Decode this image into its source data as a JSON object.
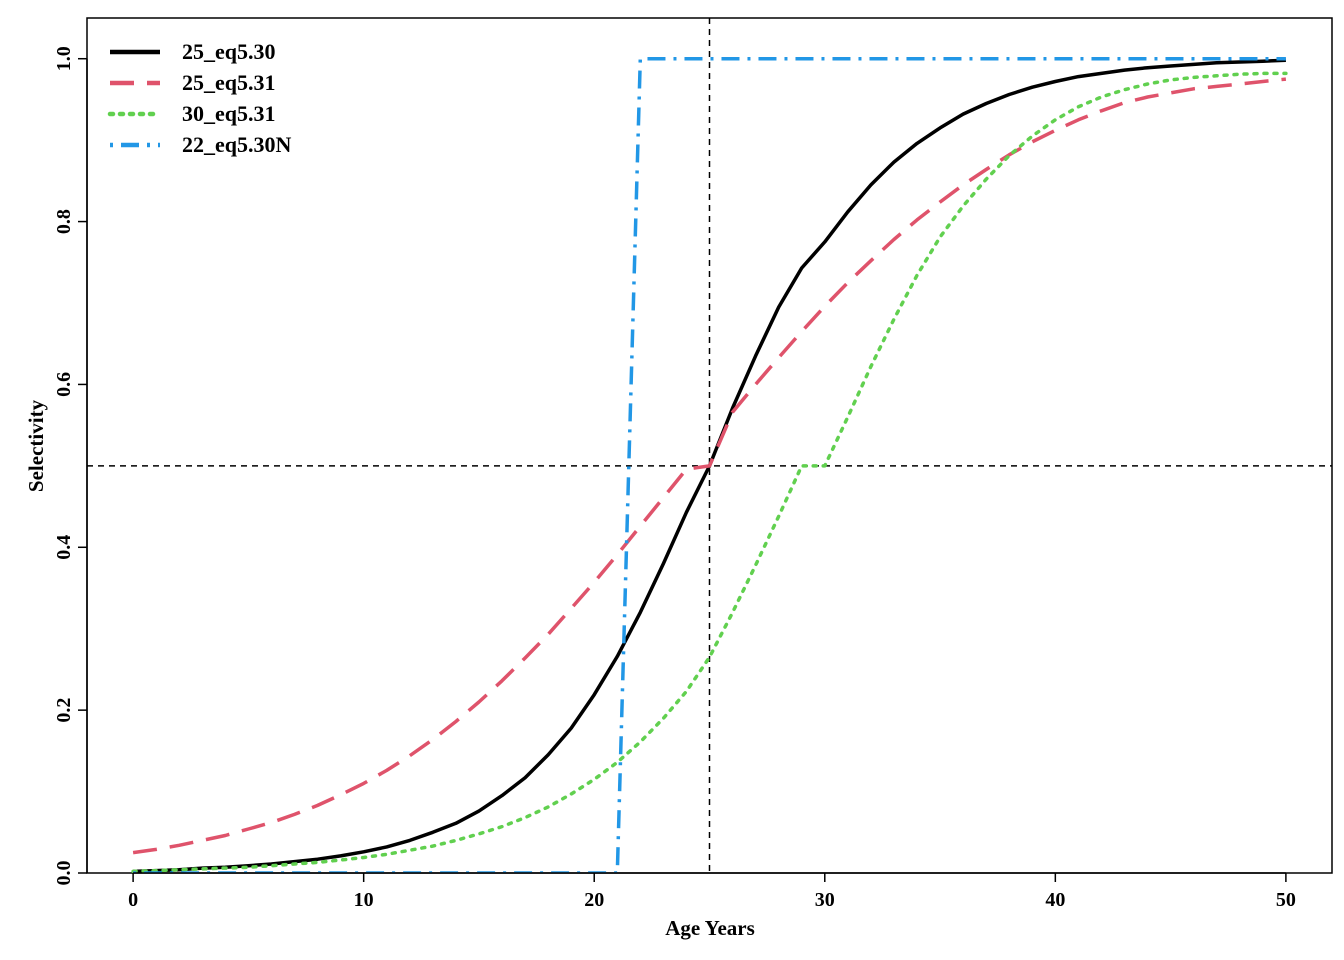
{
  "chart_data": {
    "type": "line",
    "xlabel": "Age Years",
    "ylabel": "Selectivity",
    "xlim": [
      -2,
      52
    ],
    "ylim": [
      0,
      1.05
    ],
    "x_ticks": [
      0,
      10,
      20,
      30,
      40,
      50
    ],
    "y_ticks": [
      0.0,
      0.2,
      0.4,
      0.6,
      0.8,
      1.0
    ],
    "x_tick_labels": [
      "0",
      "10",
      "20",
      "30",
      "40",
      "50"
    ],
    "y_tick_labels": [
      "0.0",
      "0.2",
      "0.4",
      "0.6",
      "0.8",
      "1.0"
    ],
    "grid": false,
    "legend_position": "top-left",
    "reference_lines": [
      {
        "orientation": "vertical",
        "value": 25
      },
      {
        "orientation": "horizontal",
        "value": 0.5
      }
    ],
    "x": [
      0,
      1,
      2,
      3,
      4,
      5,
      6,
      7,
      8,
      9,
      10,
      11,
      12,
      13,
      14,
      15,
      16,
      17,
      18,
      19,
      20,
      21,
      22,
      23,
      24,
      25,
      26,
      27,
      28,
      29,
      30,
      31,
      32,
      33,
      34,
      35,
      36,
      37,
      38,
      39,
      40,
      41,
      42,
      43,
      44,
      45,
      46,
      47,
      48,
      49,
      50
    ],
    "series": [
      {
        "name": "25_eq5.30",
        "color": "#000000",
        "dash": "solid",
        "values": [
          0.002,
          0.003,
          0.004,
          0.006,
          0.007,
          0.009,
          0.011,
          0.014,
          0.017,
          0.021,
          0.026,
          0.032,
          0.04,
          0.05,
          0.061,
          0.076,
          0.095,
          0.117,
          0.145,
          0.178,
          0.219,
          0.266,
          0.32,
          0.38,
          0.443,
          0.5,
          0.571,
          0.635,
          0.695,
          0.743,
          0.775,
          0.812,
          0.845,
          0.873,
          0.896,
          0.915,
          0.932,
          0.945,
          0.956,
          0.965,
          0.972,
          0.978,
          0.982,
          0.986,
          0.989,
          0.991,
          0.993,
          0.995,
          0.996,
          0.997,
          0.998
        ]
      },
      {
        "name": "25_eq5.31",
        "color": "#DF536B",
        "dash": "dashed",
        "values": [
          0.025,
          0.029,
          0.034,
          0.04,
          0.046,
          0.054,
          0.062,
          0.072,
          0.083,
          0.096,
          0.11,
          0.126,
          0.144,
          0.164,
          0.186,
          0.21,
          0.236,
          0.264,
          0.293,
          0.325,
          0.357,
          0.391,
          0.426,
          0.461,
          0.496,
          0.5,
          0.566,
          0.6,
          0.633,
          0.665,
          0.696,
          0.725,
          0.752,
          0.778,
          0.802,
          0.824,
          0.845,
          0.864,
          0.882,
          0.898,
          0.912,
          0.925,
          0.936,
          0.946,
          0.953,
          0.958,
          0.963,
          0.966,
          0.969,
          0.972,
          0.975
        ]
      },
      {
        "name": "30_eq5.31",
        "color": "#61D04F",
        "dash": "dotted",
        "values": [
          0.002,
          0.003,
          0.004,
          0.005,
          0.006,
          0.007,
          0.009,
          0.011,
          0.013,
          0.016,
          0.019,
          0.023,
          0.028,
          0.033,
          0.04,
          0.048,
          0.057,
          0.068,
          0.081,
          0.097,
          0.115,
          0.136,
          0.161,
          0.19,
          0.223,
          0.265,
          0.32,
          0.378,
          0.438,
          0.5,
          0.5,
          0.56,
          0.622,
          0.68,
          0.734,
          0.781,
          0.819,
          0.852,
          0.881,
          0.905,
          0.925,
          0.941,
          0.953,
          0.962,
          0.969,
          0.974,
          0.977,
          0.979,
          0.981,
          0.982,
          0.982
        ]
      },
      {
        "name": "22_eq5.30N",
        "color": "#2297E6",
        "dash": "dotdash",
        "values": [
          0,
          0,
          0,
          0,
          0,
          0,
          0,
          0,
          0,
          0,
          0,
          0,
          0,
          0,
          0,
          0,
          0,
          0,
          0,
          0,
          0,
          0,
          1,
          1,
          1,
          1,
          1,
          1,
          1,
          1,
          1,
          1,
          1,
          1,
          1,
          1,
          1,
          1,
          1,
          1,
          1,
          1,
          1,
          1,
          1,
          1,
          1,
          1,
          1,
          1,
          1
        ]
      }
    ]
  }
}
